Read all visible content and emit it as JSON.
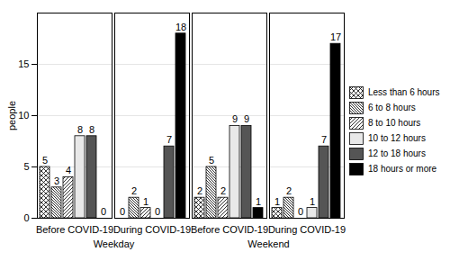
{
  "chart_data": {
    "type": "bar",
    "y_label": "people",
    "categories": [
      "Before COVID-19",
      "During COVID-19",
      "Before COVID-19",
      "During COVID-19"
    ],
    "category_groups": [
      "Weekday",
      "Weekday",
      "Weekend",
      "Weekend"
    ],
    "series": [
      {
        "name": "Less than 6 hours",
        "color": "#ffffff",
        "values": [
          5,
          0,
          2,
          1
        ]
      },
      {
        "name": "6 to 8 hours",
        "color": "#ffffff",
        "values": [
          3,
          2,
          5,
          2
        ]
      },
      {
        "name": "8 to 10 hours",
        "color": "#ffffff",
        "values": [
          4,
          1,
          2,
          0
        ]
      },
      {
        "name": "10 to 12 hours",
        "color": "#e8e8e8",
        "values": [
          8,
          0,
          9,
          1
        ]
      },
      {
        "name": "12 to 18 hours",
        "color": "#555555",
        "values": [
          8,
          7,
          9,
          7
        ]
      },
      {
        "name": "18 hours or more",
        "color": "#000000",
        "values": [
          0,
          18,
          1,
          17
        ]
      }
    ],
    "ylim": [
      0,
      20
    ],
    "yticks": [
      0,
      5,
      10,
      15
    ],
    "grid": true,
    "legend": "right",
    "data_labels": true
  }
}
